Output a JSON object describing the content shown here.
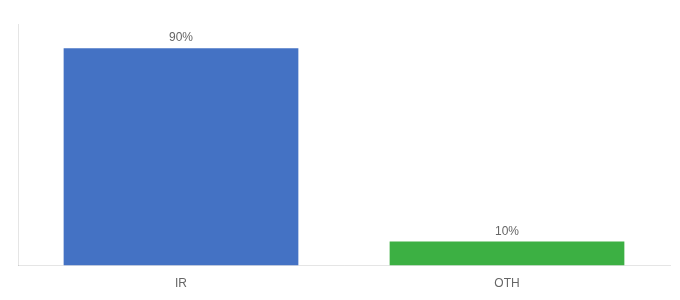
{
  "chart_data": {
    "type": "bar",
    "categories": [
      "IR",
      "OTH"
    ],
    "values": [
      90,
      10
    ],
    "colors": [
      "#4472c4",
      "#3cb043"
    ],
    "ylim": [
      0,
      100
    ],
    "grid": false,
    "data_labels": true,
    "value_labels": [
      "90%",
      "10%"
    ],
    "tick_labels": "x"
  }
}
